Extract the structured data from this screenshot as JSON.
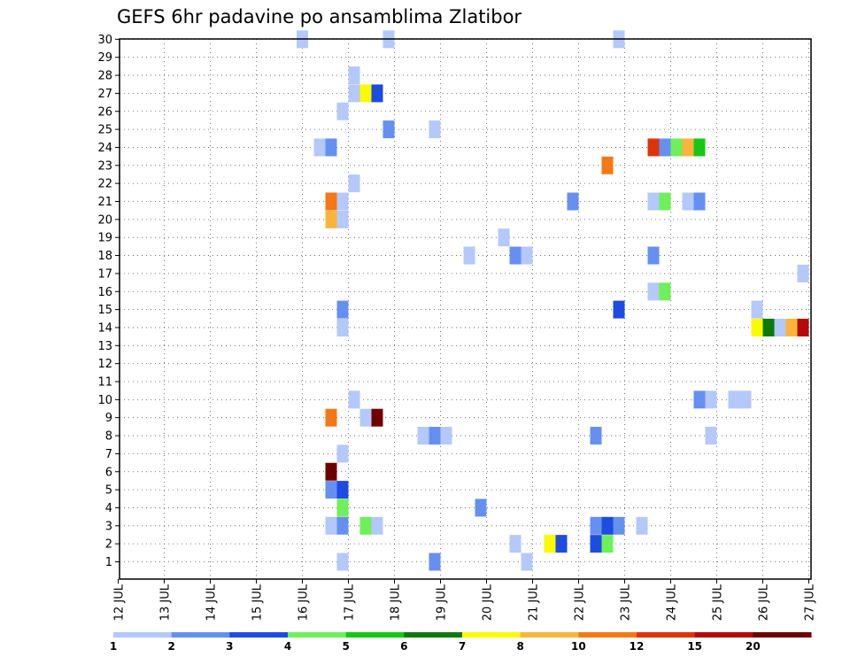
{
  "chart_data": {
    "type": "heatmap",
    "title": "GEFS 6hr padavine po ansamblima Zlatibor",
    "y_ticks": [
      "1",
      "2",
      "3",
      "4",
      "5",
      "6",
      "7",
      "8",
      "9",
      "10",
      "11",
      "12",
      "13",
      "14",
      "15",
      "16",
      "17",
      "18",
      "19",
      "20",
      "21",
      "22",
      "23",
      "24",
      "25",
      "26",
      "27",
      "28",
      "29",
      "30"
    ],
    "ylim": [
      0,
      30
    ],
    "x_ticks": [
      "12 JUL",
      "13 JUL",
      "14 JUL",
      "15 JUL",
      "16 JUL",
      "17 JUL",
      "18 JUL",
      "19 JUL",
      "20 JUL",
      "21 JUL",
      "22 JUL",
      "23 JUL",
      "24 JUL",
      "25 JUL",
      "26 JUL",
      "27 JUL"
    ],
    "x_range_days": [
      12,
      27
    ],
    "grid": true,
    "colorbar": {
      "colors": [
        "#b4c8fa",
        "#6690f0",
        "#1e4be0",
        "#6ef05a",
        "#14c814",
        "#0a7a0a",
        "#fafa00",
        "#fab43c",
        "#f57814",
        "#e0320a",
        "#b40a0a",
        "#6e0000"
      ],
      "labels": [
        "1",
        "2",
        "3",
        "4",
        "5",
        "6",
        "7",
        "8",
        "10",
        "12",
        "15",
        "20"
      ]
    },
    "cells": [
      {
        "member": 30,
        "day": 16.0,
        "bin": 1
      },
      {
        "member": 30,
        "day": 17.875,
        "bin": 1
      },
      {
        "member": 30,
        "day": 22.875,
        "bin": 1
      },
      {
        "member": 28,
        "day": 17.125,
        "bin": 1
      },
      {
        "member": 27,
        "day": 17.125,
        "bin": 1
      },
      {
        "member": 27,
        "day": 17.375,
        "bin": 7
      },
      {
        "member": 27,
        "day": 17.625,
        "bin": 3
      },
      {
        "member": 26,
        "day": 16.875,
        "bin": 1
      },
      {
        "member": 25,
        "day": 17.875,
        "bin": 2
      },
      {
        "member": 25,
        "day": 18.875,
        "bin": 1
      },
      {
        "member": 24,
        "day": 16.375,
        "bin": 1
      },
      {
        "member": 24,
        "day": 16.625,
        "bin": 2
      },
      {
        "member": 24,
        "day": 23.625,
        "bin": 10
      },
      {
        "member": 24,
        "day": 23.875,
        "bin": 2
      },
      {
        "member": 24,
        "day": 24.125,
        "bin": 4
      },
      {
        "member": 24,
        "day": 24.375,
        "bin": 8
      },
      {
        "member": 24,
        "day": 24.625,
        "bin": 5
      },
      {
        "member": 23,
        "day": 22.625,
        "bin": 9
      },
      {
        "member": 22,
        "day": 17.125,
        "bin": 1
      },
      {
        "member": 21,
        "day": 16.625,
        "bin": 9
      },
      {
        "member": 21,
        "day": 16.875,
        "bin": 1
      },
      {
        "member": 21,
        "day": 21.875,
        "bin": 2
      },
      {
        "member": 21,
        "day": 23.625,
        "bin": 1
      },
      {
        "member": 21,
        "day": 23.875,
        "bin": 4
      },
      {
        "member": 21,
        "day": 24.375,
        "bin": 1
      },
      {
        "member": 21,
        "day": 24.625,
        "bin": 2
      },
      {
        "member": 20,
        "day": 16.625,
        "bin": 8
      },
      {
        "member": 20,
        "day": 16.875,
        "bin": 1
      },
      {
        "member": 19,
        "day": 20.375,
        "bin": 1
      },
      {
        "member": 18,
        "day": 19.625,
        "bin": 1
      },
      {
        "member": 18,
        "day": 20.625,
        "bin": 2
      },
      {
        "member": 18,
        "day": 20.875,
        "bin": 1
      },
      {
        "member": 18,
        "day": 23.625,
        "bin": 2
      },
      {
        "member": 17,
        "day": 26.875,
        "bin": 1
      },
      {
        "member": 16,
        "day": 23.625,
        "bin": 1
      },
      {
        "member": 16,
        "day": 23.875,
        "bin": 4
      },
      {
        "member": 15,
        "day": 25.875,
        "bin": 1
      },
      {
        "member": 15,
        "day": 16.875,
        "bin": 2
      },
      {
        "member": 15,
        "day": 22.875,
        "bin": 3
      },
      {
        "member": 14,
        "day": 16.875,
        "bin": 1
      },
      {
        "member": 14,
        "day": 25.875,
        "bin": 7
      },
      {
        "member": 14,
        "day": 26.125,
        "bin": 6
      },
      {
        "member": 14,
        "day": 26.375,
        "bin": 1
      },
      {
        "member": 14,
        "day": 26.625,
        "bin": 8
      },
      {
        "member": 14,
        "day": 26.875,
        "bin": 11
      },
      {
        "member": 10,
        "day": 17.125,
        "bin": 1
      },
      {
        "member": 10,
        "day": 24.625,
        "bin": 2
      },
      {
        "member": 10,
        "day": 24.875,
        "bin": 1
      },
      {
        "member": 10,
        "day": 25.375,
        "bin": 1
      },
      {
        "member": 10,
        "day": 25.625,
        "bin": 1
      },
      {
        "member": 9,
        "day": 16.625,
        "bin": 9
      },
      {
        "member": 9,
        "day": 17.375,
        "bin": 1
      },
      {
        "member": 9,
        "day": 17.625,
        "bin": 12
      },
      {
        "member": 8,
        "day": 18.625,
        "bin": 1
      },
      {
        "member": 8,
        "day": 18.875,
        "bin": 2
      },
      {
        "member": 8,
        "day": 19.125,
        "bin": 1
      },
      {
        "member": 8,
        "day": 22.375,
        "bin": 2
      },
      {
        "member": 8,
        "day": 24.875,
        "bin": 1
      },
      {
        "member": 7,
        "day": 16.875,
        "bin": 1
      },
      {
        "member": 6,
        "day": 16.625,
        "bin": 12
      },
      {
        "member": 5,
        "day": 16.625,
        "bin": 2
      },
      {
        "member": 5,
        "day": 16.875,
        "bin": 3
      },
      {
        "member": 4,
        "day": 16.875,
        "bin": 4
      },
      {
        "member": 4,
        "day": 19.875,
        "bin": 2
      },
      {
        "member": 3,
        "day": 16.625,
        "bin": 1
      },
      {
        "member": 3,
        "day": 16.875,
        "bin": 2
      },
      {
        "member": 3,
        "day": 17.375,
        "bin": 4
      },
      {
        "member": 3,
        "day": 17.625,
        "bin": 1
      },
      {
        "member": 3,
        "day": 22.375,
        "bin": 2
      },
      {
        "member": 3,
        "day": 22.625,
        "bin": 3
      },
      {
        "member": 3,
        "day": 22.875,
        "bin": 2
      },
      {
        "member": 3,
        "day": 23.375,
        "bin": 1
      },
      {
        "member": 2,
        "day": 20.625,
        "bin": 1
      },
      {
        "member": 2,
        "day": 21.375,
        "bin": 7
      },
      {
        "member": 2,
        "day": 21.625,
        "bin": 3
      },
      {
        "member": 2,
        "day": 22.375,
        "bin": 3
      },
      {
        "member": 2,
        "day": 22.625,
        "bin": 4
      },
      {
        "member": 1,
        "day": 16.875,
        "bin": 1
      },
      {
        "member": 1,
        "day": 18.875,
        "bin": 2
      },
      {
        "member": 1,
        "day": 20.875,
        "bin": 1
      }
    ]
  }
}
